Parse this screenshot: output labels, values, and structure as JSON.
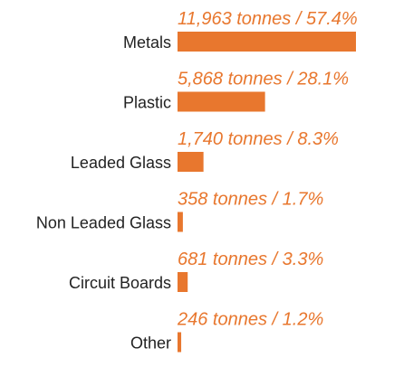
{
  "chart_data": {
    "type": "bar",
    "orientation": "horizontal",
    "color": "#e8772e",
    "categories": [
      "Metals",
      "Plastic",
      "Leaded Glass",
      "Non Leaded Glass",
      "Circuit Boards",
      "Other"
    ],
    "values": [
      11963,
      5868,
      1740,
      358,
      681,
      246
    ],
    "value_labels": [
      "11,963 tonnes / 57.4%",
      "5,868 tonnes / 28.1%",
      "1,740 tonnes / 8.3%",
      "358 tonnes / 1.7%",
      "681 tonnes / 3.3%",
      "246 tonnes / 1.2%"
    ]
  }
}
